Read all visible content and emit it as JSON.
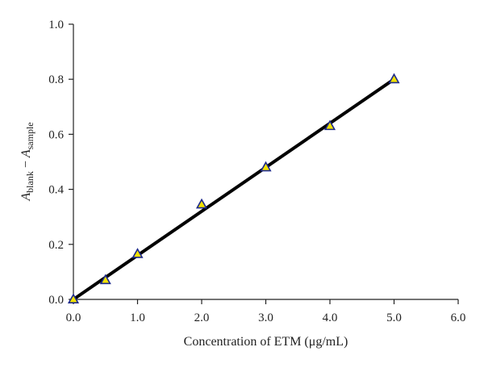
{
  "chart_data": {
    "type": "scatter",
    "title": "",
    "xlabel": "Concentration of ETM (μg/mL)",
    "ylabel": "A_blank − A_sample",
    "ylabel_parts": {
      "a1": "A",
      "sub1": "blank",
      "minus": " − ",
      "a2": "A",
      "sub2": "sample"
    },
    "xlim": [
      0,
      6
    ],
    "ylim": [
      0,
      1
    ],
    "x_ticks": [
      "0.0",
      "1.0",
      "2.0",
      "3.0",
      "4.0",
      "5.0",
      "6.0"
    ],
    "y_ticks": [
      "0.0",
      "0.2",
      "0.4",
      "0.6",
      "0.8",
      "1.0"
    ],
    "grid": false,
    "series": [
      {
        "marker": "triangle",
        "marker_fill": "#f2e200",
        "marker_stroke": "#1e2a8c",
        "points": [
          {
            "x": 0.0,
            "y": 0.0
          },
          {
            "x": 0.5,
            "y": 0.07
          },
          {
            "x": 1.0,
            "y": 0.165
          },
          {
            "x": 2.0,
            "y": 0.345
          },
          {
            "x": 3.0,
            "y": 0.48
          },
          {
            "x": 4.0,
            "y": 0.63
          },
          {
            "x": 5.0,
            "y": 0.8
          }
        ]
      }
    ],
    "fit_line": {
      "x": [
        0.0,
        5.0
      ],
      "y": [
        0.0,
        0.8
      ],
      "color": "#000000"
    }
  }
}
